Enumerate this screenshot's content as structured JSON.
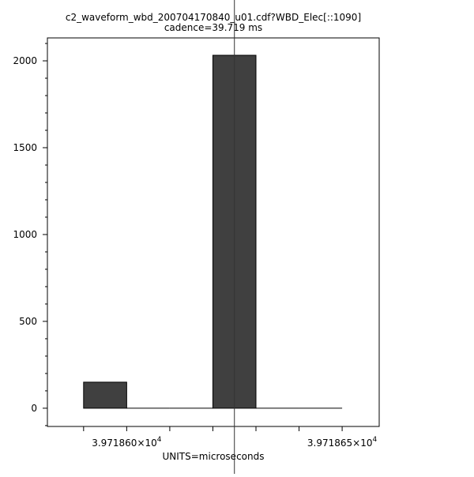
{
  "chart_data": {
    "type": "bar",
    "title": "c2_waveform_wbd_200704170840_u01.cdf?WBD_Elec[::1090]",
    "subtitle": "cadence=39.719 ms",
    "xlabel": "UNITS=microseconds",
    "ylabel": "",
    "bins": [
      {
        "x0": 39718.59,
        "x1": 39718.6,
        "value": 150
      },
      {
        "x0": 39718.6,
        "x1": 39718.61,
        "value": 0
      },
      {
        "x0": 39718.61,
        "x1": 39718.62,
        "value": 0
      },
      {
        "x0": 39718.62,
        "x1": 39718.63,
        "value": 2032
      },
      {
        "x0": 39718.63,
        "x1": 39718.64,
        "value": 0
      },
      {
        "x0": 39718.64,
        "x1": 39718.65,
        "value": 0
      }
    ],
    "xlim": [
      39718.5816,
      39718.6586
    ],
    "ylim": [
      -105,
      2132
    ],
    "x_major_ticks": [
      39718.59,
      39718.6,
      39718.61,
      39718.62,
      39718.63,
      39718.64,
      39718.65
    ],
    "x_tick_labels": [
      {
        "value": 39718.6,
        "mantissa": "3.971860×10",
        "exponent": "4"
      },
      {
        "value": 39718.65,
        "mantissa": "3.971865×10",
        "exponent": "4"
      }
    ],
    "y_ticks": [
      0,
      500,
      1000,
      1500,
      2000
    ],
    "y_tick_labels": [
      "0",
      "500",
      "1000",
      "1500",
      "2000"
    ],
    "y_minor_step": 100,
    "vertical_marker_x": 39718.625,
    "bar_color": "#404040",
    "grid": false,
    "legend": "none"
  }
}
